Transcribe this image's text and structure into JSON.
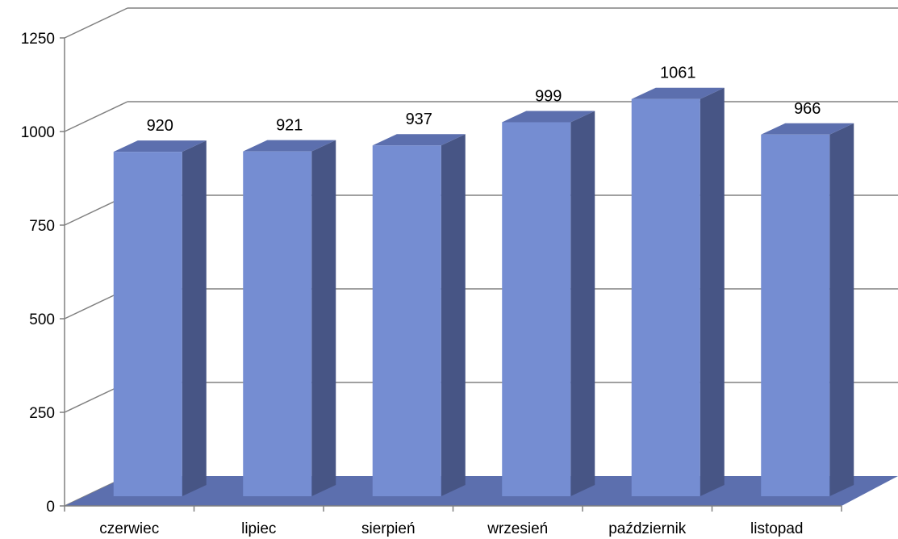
{
  "chart_data": {
    "type": "bar",
    "categories": [
      "czerwiec",
      "lipiec",
      "sierpień",
      "wrzesień",
      "październik",
      "listopad"
    ],
    "values": [
      920,
      921,
      937,
      999,
      1061,
      966
    ],
    "data_labels": [
      "920",
      "921",
      "937",
      "999",
      "1061",
      "966"
    ],
    "yticks": [
      "0",
      "250",
      "500",
      "750",
      "1000",
      "1250"
    ],
    "ylim": [
      0,
      1250
    ],
    "title": "",
    "xlabel": "",
    "ylabel": "",
    "grid": true,
    "legend": "none",
    "style": "3d",
    "colors": {
      "bar_front": "#758dd2",
      "bar_side": "#475585",
      "bar_top": "#5c6fae",
      "floor": "#5c6fae",
      "grid": "#808080"
    }
  }
}
